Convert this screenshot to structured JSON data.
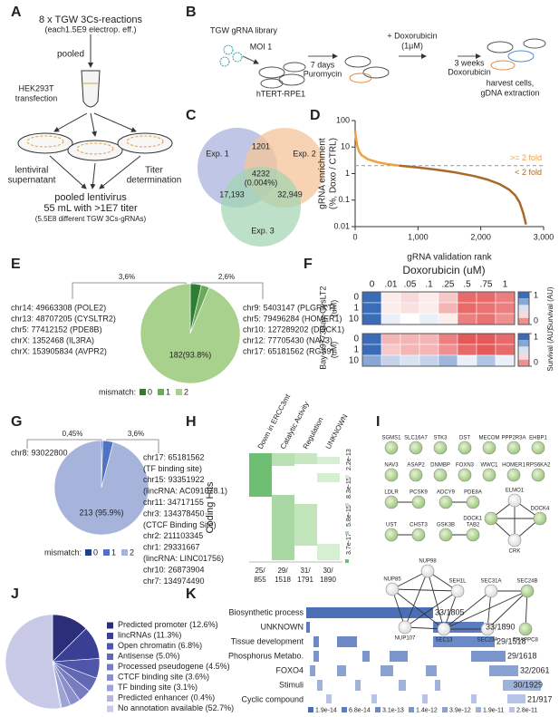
{
  "panel_labels": [
    "A",
    "B",
    "C",
    "D",
    "E",
    "F",
    "G",
    "H",
    "I",
    "J",
    "K"
  ],
  "panels": {
    "A": {
      "lines": [
        "8 x TGW 3Cs-reactions",
        "(each1.5E9 electrop. eff.)",
        "pooled",
        "HEK293T",
        "transfection",
        "lentiviral",
        "supernatant",
        "Titer",
        "determination",
        "pooled lentivirus",
        "55 mL with >1E7 titer",
        "(5.5E8 different TGW 3Cs-gRNAs)"
      ]
    },
    "B": {
      "texts": [
        "TGW gRNA library",
        "MOI 1",
        "hTERT-RPE1",
        "7 days",
        "Puromycin",
        "+ Doxorubicin",
        "(1µM)",
        "3 weeks",
        "Doxorubicin",
        "harvest cells,",
        "gDNA extraction"
      ]
    },
    "C": {
      "sets": [
        "Exp. 1",
        "Exp. 2",
        "Exp. 3"
      ],
      "regions": [
        "1201",
        "4232",
        "(0.004%)",
        "17,193",
        "32,949"
      ]
    },
    "H": {
      "columns": [
        "Down in ERCC3mt",
        "Catalytic Activity",
        "Regulation",
        "UNKNOWN"
      ],
      "ylabel": "Coding Hits",
      "counts": [
        "25/",
        "29/",
        "31/",
        "30/"
      ],
      "totals": [
        "855",
        "1518",
        "1791",
        "1890"
      ],
      "pvalues": [
        "3.7e-17",
        "5.8e-15",
        "8.3e-15",
        "2.2e-13"
      ]
    },
    "I": {
      "genes": [
        "SGMS1",
        "SLC16A7",
        "STK3",
        "DST",
        "MECOM",
        "PPP2R3A",
        "EHBP1",
        "NAV3",
        "ASAP2",
        "DNMBP",
        "FOXN3",
        "WWC1",
        "HOMER1",
        "RPS6KA2",
        "LDLR",
        "PCSK9",
        "ADCY9",
        "PDE8A",
        "DOCK1",
        "ELMO1",
        "DOCK4",
        "CRK",
        "UST",
        "CHST3",
        "GSK3B",
        "TAB2",
        "NUP98",
        "NUP85",
        "SEH1L",
        "SEC31A",
        "SEC24B",
        "NUP107",
        "SEC13",
        "SEC23A",
        "TRAPPC8"
      ]
    },
    "K": {
      "rows": [
        "Biosynthetic process",
        "UNKNOWN",
        "Tissue development",
        "Phosphorus Metabo.",
        "FOXO4",
        "Stimuli",
        "Cyclic compound"
      ],
      "counts": [
        "33/1805",
        "33/1890",
        "29/1518",
        "29/1618",
        "32/2061",
        "30/1929",
        "21/917"
      ],
      "pvalues": [
        "1.9e-14",
        "6.8e-14",
        "3.1e-13",
        "1.4e-12",
        "3.9e-12",
        "1.9e-11",
        "2.8e-11"
      ]
    }
  },
  "chart_data": [
    {
      "type": "line",
      "ylabel": [
        "gRNA enrichment",
        "(%, Doxo / CTRL)"
      ],
      "xlabel": "gRNA validation rank",
      "log_scale_y": true,
      "xlim": [
        0,
        3000
      ],
      "xticks": [
        0,
        {
          "value": 1000,
          "label": "1,000"
        },
        {
          "value": 2000,
          "label": "2,000"
        },
        {
          "value": 3000,
          "label": "3,000"
        }
      ],
      "ylim": [
        0.01,
        100
      ],
      "yticks": [
        0.01,
        0.1,
        1,
        10,
        100
      ],
      "threshold": 2,
      "series": [
        {
          "name": ">= 2 fold",
          "color": "#f0a040",
          "x": [
            0,
            10,
            30,
            60,
            100,
            200,
            350,
            500,
            700
          ],
          "values": [
            40,
            25,
            12,
            7,
            5,
            3.5,
            2.7,
            2.3,
            2.0
          ]
        },
        {
          "name": "< 2 fold",
          "color": "#a8692a",
          "x": [
            700,
            1000,
            1300,
            1600,
            1900,
            2100,
            2300,
            2450,
            2550,
            2620,
            2680,
            2720
          ],
          "values": [
            2.0,
            1.7,
            1.4,
            1.1,
            0.8,
            0.6,
            0.4,
            0.25,
            0.15,
            0.08,
            0.03,
            0.012
          ]
        }
      ]
    },
    {
      "type": "pie",
      "legend_title": "mismatch:",
      "categories": [
        "0",
        "1",
        "2"
      ],
      "values": [
        3.6,
        2.6,
        93.8
      ],
      "value_labels": [
        "3,6%",
        "2,6%",
        "182(93.8%)"
      ],
      "colors": [
        "#2e7d32",
        "#6aaa5a",
        "#a9d18e"
      ],
      "left_list": [
        "chr14: 49663308 (POLE2)",
        "chr13: 48707205 (CYSLTR2)",
        "chr5: 77412152 (PDE8B)",
        "chrX: 1352468 (IL3RA)",
        "chrX: 153905834 (AVPR2)"
      ],
      "right_list": [
        "chr9: 5403147 (PLGRKT)",
        "chr5: 79496284 (HOMER1)",
        "chr10: 127289202 (DOCK1)",
        "chr12: 77705430 (NAV3)",
        "chr17: 65181562 (RGS9)"
      ]
    },
    {
      "type": "heatmap",
      "title": "Doxorubicin (uM)",
      "columns": [
        "0",
        ".01",
        ".05",
        ".1",
        ".25",
        ".5",
        ".75",
        "1"
      ],
      "zlim": [
        0,
        1
      ],
      "colorbar_ticks": [
        1,
        0
      ],
      "colorbar_label": "Survival (AU)",
      "groups": [
        {
          "name": "Bay-CysLT2",
          "unit": "(uM)",
          "rows": [
            "0",
            "1",
            "10"
          ],
          "values": [
            [
              1,
              0.45,
              0.4,
              0.45,
              0.35,
              0.1,
              0.1,
              0.15
            ],
            [
              1,
              0.45,
              0.42,
              0.45,
              0.3,
              0.1,
              0.12,
              0.15
            ],
            [
              1,
              0.55,
              0.5,
              0.55,
              0.45,
              0.15,
              0.12,
              0.2
            ]
          ]
        },
        {
          "name": "Bay-u9773",
          "unit": "(uM)",
          "rows": [
            "0",
            "1",
            "10"
          ],
          "values": [
            [
              1,
              0.3,
              0.3,
              0.3,
              0.15,
              0.05,
              0.05,
              0.1
            ],
            [
              1,
              0.35,
              0.3,
              0.3,
              0.2,
              0.1,
              0.05,
              0.1
            ],
            [
              0.8,
              0.65,
              0.6,
              0.65,
              0.75,
              0.55,
              0.7,
              0.55
            ]
          ]
        }
      ]
    },
    {
      "type": "pie",
      "legend_title": "mismatch:",
      "categories": [
        "0",
        "1",
        "2"
      ],
      "values": [
        0.45,
        3.6,
        95.9
      ],
      "value_labels": [
        "0,45%",
        "3,6%",
        "213 (95.9%)"
      ],
      "colors": [
        "#1f3f8f",
        "#4f72c4",
        "#a6b4dc"
      ],
      "left_list": [
        "chr8: 93022800"
      ],
      "right_list": [
        "chr17: 65181562",
        "(TF binding site)",
        "chr15: 93351922",
        "(lincRNA: AC091078.1)",
        "chr11: 34717155",
        "chr3: 134378450",
        "(CTCF Binding Site)",
        "chr2: 211103345",
        "chr1: 29331667",
        "(lincRNA: LINC01756)",
        "chr10: 26873904",
        "chr7: 134974490"
      ]
    },
    {
      "type": "pie",
      "categories": [
        "Predicted promoter",
        "lincRNAs",
        "Open chromatin",
        "Antisense",
        "Processed pseudogene",
        "CTCF binding site",
        "TF binding site",
        "Predicted enhancer",
        "No annotation available"
      ],
      "values": [
        12.6,
        11.3,
        6.8,
        5.0,
        4.5,
        3.6,
        3.1,
        0.4,
        52.7
      ],
      "value_labels": [
        "(12.6%)",
        "(11.3%)",
        "(6.8%)",
        "(5.0%)",
        "(4.5%)",
        "(3.6%)",
        "(3.1%)",
        "(0.4%)",
        "(52.7%)"
      ],
      "colors": [
        "#2b2f7a",
        "#3b3f94",
        "#4f55a8",
        "#6368b5",
        "#777cc0",
        "#8a8fcb",
        "#9ea3d5",
        "#b3b7df",
        "#c7c9e7"
      ]
    }
  ]
}
